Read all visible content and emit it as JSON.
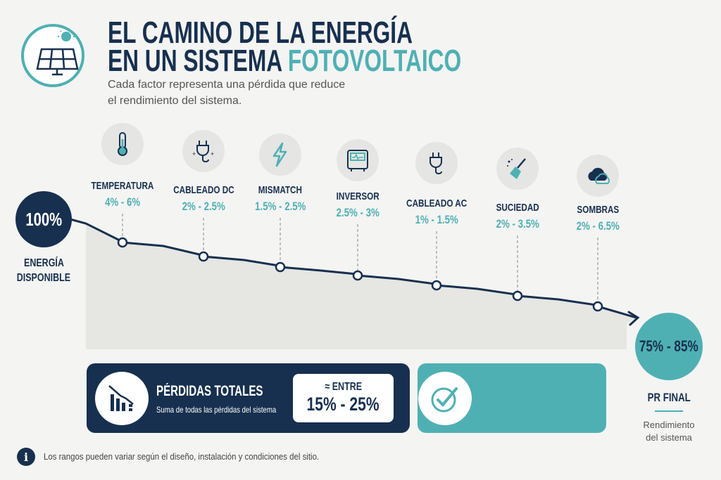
{
  "header": {
    "title_line1": "EL CAMINO DE LA ENERGÍA",
    "title_line2_a": "EN UN SISTEMA",
    "title_line2_b": "FOTOVOLTAICO",
    "subtitle_line1": "Cada factor representa una pérdida que reduce",
    "subtitle_line2": "el rendimiento del sistema.",
    "logo_icon": "solar-panel-icon"
  },
  "start": {
    "value": "100%",
    "label_line1": "ENERGÍA",
    "label_line2": "DISPONIBLE"
  },
  "factors": [
    {
      "name": "TEMPERATURA",
      "range": "4% - 6%",
      "icon": "thermometer-icon"
    },
    {
      "name": "CABLEADO DC",
      "range": "2% - 2.5%",
      "icon": "dc-plug-icon"
    },
    {
      "name": "MISMATCH",
      "range": "1.5% - 2.5%",
      "icon": "lightning-icon"
    },
    {
      "name": "INVERSOR",
      "range": "2.5% - 3%",
      "icon": "inverter-icon"
    },
    {
      "name": "CABLEADO AC",
      "range": "1% - 1.5%",
      "icon": "ac-plug-icon"
    },
    {
      "name": "SUCIEDAD",
      "range": "2% - 3.5%",
      "icon": "broom-icon"
    },
    {
      "name": "SOMBRAS",
      "range": "2% - 6.5%",
      "icon": "cloud-icon"
    }
  ],
  "final": {
    "value": "75% - 85%",
    "label": "PR FINAL",
    "desc_line1": "Rendimiento",
    "desc_line2": "del sistema"
  },
  "totals": {
    "title": "PÉRDIDAS TOTALES",
    "subtitle": "Suma de todas las pérdidas del sistema",
    "approx": "≈ ENTRE",
    "range": "15% - 25%"
  },
  "footer": {
    "note": "Los rangos pueden variar según el diseño, instalación y condiciones del sitio."
  },
  "colors": {
    "navy": "#17304f",
    "teal": "#4fb0b3",
    "background": "#f4f4f3",
    "area": "#e6e6e3"
  }
}
